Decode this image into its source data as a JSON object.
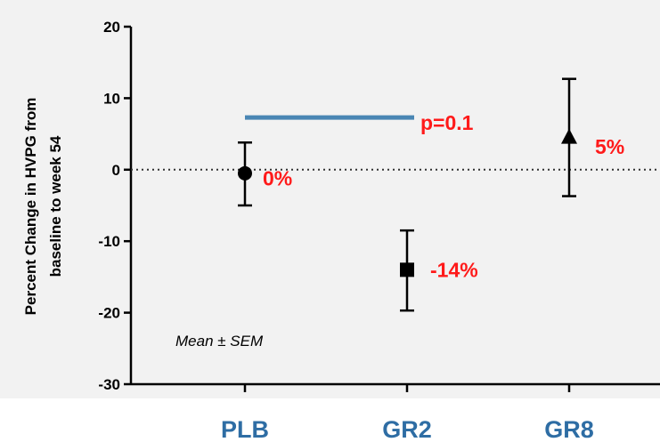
{
  "chart_data": {
    "type": "scatter",
    "title": "",
    "ylabel_line1": "Percent Change in HVPG from",
    "ylabel_line2": "baseline to week 54",
    "xlabel": "",
    "ylim": [
      -30,
      20
    ],
    "yticks": [
      20,
      10,
      0,
      -10,
      -20,
      -30
    ],
    "categories": [
      "PLB",
      "GR2",
      "GR8"
    ],
    "series": [
      {
        "points": [
          {
            "category": "PLB",
            "mean": -0.5,
            "err_low": -5,
            "err_high": 3.8,
            "marker": "circle",
            "label": "0%"
          },
          {
            "category": "GR2",
            "mean": -14,
            "err_low": -19.7,
            "err_high": -8.5,
            "marker": "square",
            "label": "-14%"
          },
          {
            "category": "GR8",
            "mean": 4.5,
            "err_low": -3.7,
            "err_high": 12.7,
            "marker": "triangle",
            "label": "5%"
          }
        ]
      }
    ],
    "reference_line": {
      "y": 0,
      "style": "dotted"
    },
    "comparison": {
      "from": "PLB",
      "to": "GR2",
      "y": 7.3,
      "label": "p=0.1",
      "color": "#4a86b4"
    },
    "annotation": "Mean ± SEM",
    "colors": {
      "background": "#f2f2f2",
      "data_label": "#ff1a1a",
      "category_label": "#2e6da4",
      "marker": "#000000"
    }
  }
}
